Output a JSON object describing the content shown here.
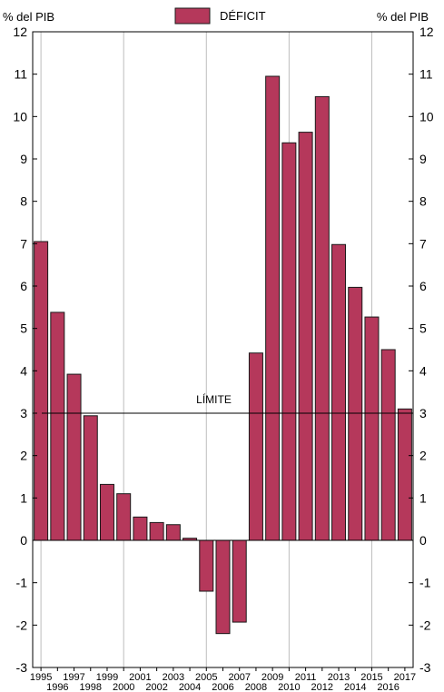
{
  "chart_data": {
    "type": "bar",
    "ylabel_left": "% del PIB",
    "ylabel_right": "% del PIB",
    "legend": {
      "label": "DÉFICIT",
      "placement": "top-center"
    },
    "colors": {
      "bar": "#b5385b",
      "bar_stroke": "#1a1a1a",
      "grid": "#bdbdbd",
      "limit_line": "#000000"
    },
    "ylim": [
      -3,
      12
    ],
    "yticks": [
      -3,
      -2,
      -1,
      0,
      1,
      2,
      3,
      4,
      5,
      6,
      7,
      8,
      9,
      10,
      11,
      12
    ],
    "categories": [
      "1995",
      "1996",
      "1997",
      "1998",
      "1999",
      "2000",
      "2001",
      "2002",
      "2003",
      "2004",
      "2005",
      "2006",
      "2007",
      "2008",
      "2009",
      "2010",
      "2011",
      "2012",
      "2013",
      "2014",
      "2015",
      "2016",
      "2017"
    ],
    "series": [
      {
        "values": [
          7.05,
          5.38,
          3.92,
          2.94,
          1.32,
          1.1,
          0.55,
          0.42,
          0.37,
          0.05,
          -1.2,
          -2.2,
          -1.93,
          4.42,
          10.95,
          9.38,
          9.63,
          10.47,
          6.98,
          5.97,
          5.27,
          4.5,
          3.1
        ]
      }
    ],
    "reference_line": {
      "label": "LÍMITE",
      "value": 3
    },
    "vertical_gridlines_at": [
      "1995",
      "2000",
      "2005",
      "2010",
      "2015"
    ]
  }
}
